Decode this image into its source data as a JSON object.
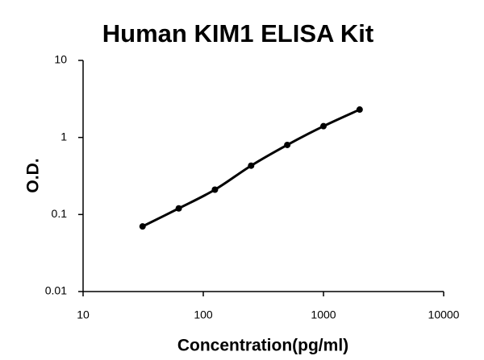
{
  "chart_data": {
    "type": "scatter",
    "title": "Human KIM1 ELISA Kit",
    "x_label": "Concentration(pg/ml)",
    "y_label": "O.D.",
    "x": [
      31.25,
      62.5,
      125,
      250,
      500,
      1000,
      2000
    ],
    "values": [
      0.07,
      0.12,
      0.21,
      0.43,
      0.8,
      1.4,
      2.3
    ],
    "color": "#000000",
    "fit_line": true,
    "x_log": true,
    "y_log": true,
    "xlim": [
      10,
      10000
    ],
    "xticks": [
      10,
      100,
      1000,
      10000
    ],
    "ylim": [
      0.01,
      10
    ],
    "yticks": [
      0.01,
      0.1,
      1,
      10
    ]
  }
}
